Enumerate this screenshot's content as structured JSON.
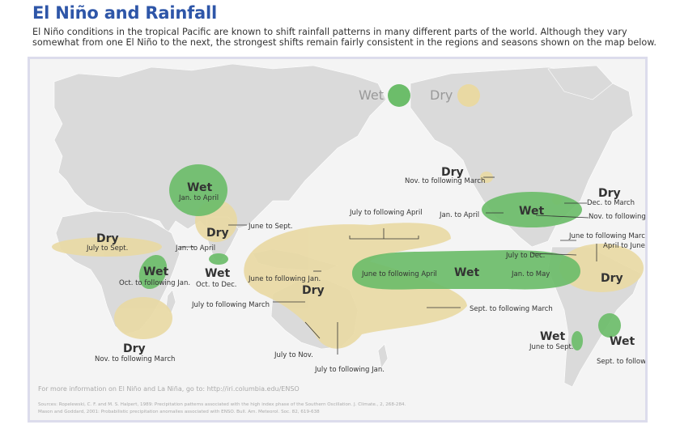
{
  "header": {
    "title": "El Niño and Rainfall",
    "intro": "El Niño conditions in the tropical Pacific are known to shift rainfall patterns in many different parts of the world. Although they vary somewhat from one El Niño to the next, the strongest shifts remain fairly consistent in the regions and seasons shown on the map below."
  },
  "legend": {
    "wet": "Wet",
    "dry": "Dry"
  },
  "colors": {
    "wet": "#6cbd6a",
    "dry": "#e9d9a3",
    "land": "#dadada",
    "ocean": "#f4f4f4",
    "title": "#2e56a8"
  },
  "regions": {
    "asia_wet": {
      "type": "Wet",
      "season": "Jan. to April"
    },
    "india_dry": {
      "type": "Dry",
      "season": "June to Sept."
    },
    "srilanka_wet": {
      "type": "Wet",
      "season": "Oct. to Dec."
    },
    "seasia_label": "Jan. to April",
    "sahel_dry": {
      "type": "Dry",
      "season": "July to Sept."
    },
    "eafrica_wet": {
      "type": "Wet",
      "season": "Oct. to following Jan."
    },
    "safrica_dry": {
      "type": "Dry",
      "season": "Nov. to following March"
    },
    "indonesia_dry": {
      "type": "Dry",
      "season1": "June to following Jan.",
      "season2": "July to following March"
    },
    "australia_label1": "July to Nov.",
    "australia_label2": "July to following Jan.",
    "pacific_label_top": "July to following April",
    "pacific_wet": {
      "type": "Wet",
      "season1": "June to following April",
      "season2": "Jan. to May"
    },
    "pacific_dry_south": "Sept. to following March",
    "alaska_dry": {
      "type": "Dry",
      "season": "Nov. to following March"
    },
    "us_wet": {
      "type": "Wet",
      "season": "Jan. to April"
    },
    "us_east_dry": {
      "type": "Dry",
      "season": "Dec. to March"
    },
    "gulf_label": "Nov. to following April",
    "caribbean_label": "June to following March",
    "central_america_label": "July to Dec.",
    "brazil_label": "April to June",
    "brazil_dry": {
      "type": "Dry"
    },
    "andes_wet": {
      "type": "Wet",
      "season": "June to Sept."
    },
    "sbrazil_wet": {
      "type": "Wet",
      "season": "Sept. to following Jan."
    }
  },
  "footer": {
    "more_info": "For more information on El Niño and La Niña, go to: http://iri.columbia.edu/ENSO",
    "sources1": "Sources: Ropelewski, C. F. and M. S. Halpert, 1989: Precipitation patterns associated with the high index phase of the Southern Oscillation. J. Climate., 2, 268-284.",
    "sources2": "Mason and Goddard, 2001: Probabilistic precipitation anomalies associated with ENSO. Bull. Am. Meteorol. Soc. 82, 619-638"
  }
}
